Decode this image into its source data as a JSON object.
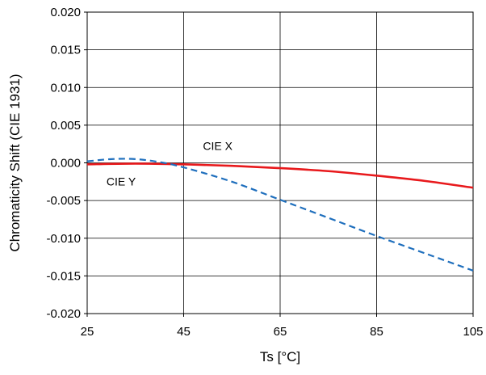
{
  "chart_data": {
    "type": "line",
    "title": "",
    "xlabel": "Ts [°C]",
    "ylabel": "Chromaticity Shift (CIE 1931)",
    "xlim": [
      25,
      105
    ],
    "ylim": [
      -0.02,
      0.02
    ],
    "x_ticks": [
      "25",
      "45",
      "65",
      "85",
      "105"
    ],
    "y_ticks": [
      "0.020",
      "0.015",
      "0.010",
      "0.005",
      "0.000",
      "-0.005",
      "-0.010",
      "-0.015",
      "-0.020"
    ],
    "grid": true,
    "legend": "none",
    "series": [
      {
        "name": "CIE X",
        "color": "#e8191c",
        "style": "solid",
        "x": [
          25,
          35,
          45,
          55,
          65,
          75,
          85,
          95,
          105
        ],
        "y": [
          -0.0002,
          -0.0001,
          -0.0002,
          -0.0004,
          -0.0007,
          -0.0011,
          -0.0017,
          -0.0024,
          -0.0033
        ]
      },
      {
        "name": "CIE Y",
        "color": "#1f6fbd",
        "style": "dashed",
        "x": [
          25,
          30,
          35,
          40,
          45,
          55,
          65,
          75,
          85,
          95,
          105
        ],
        "y": [
          0.0002,
          0.0005,
          0.0005,
          0.0001,
          -0.0006,
          -0.0025,
          -0.0049,
          -0.0073,
          -0.0097,
          -0.012,
          -0.0143
        ]
      }
    ],
    "series_labels": [
      {
        "text": "CIE X",
        "x": 49,
        "y": 0.0017
      },
      {
        "text": "CIE Y",
        "x": 29,
        "y": -0.003
      }
    ]
  }
}
